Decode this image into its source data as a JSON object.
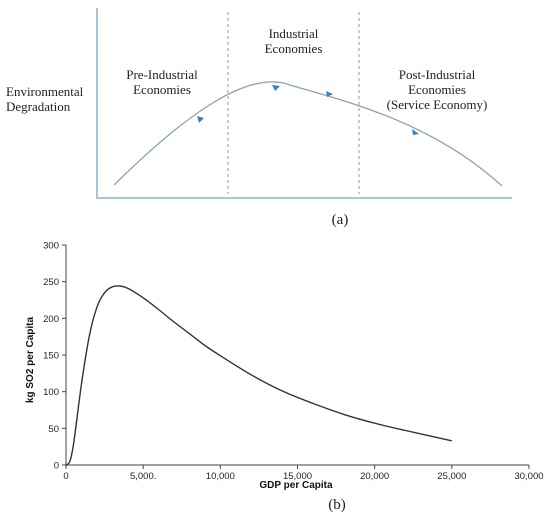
{
  "panel_a": {
    "caption": "(a)",
    "ylabel_line1": "Environmental",
    "ylabel_line2": "Degradation",
    "regions": [
      {
        "line1": "Pre-Industrial",
        "line2": "Economies",
        "line3": ""
      },
      {
        "line1": "Industrial",
        "line2": "Economies",
        "line3": ""
      },
      {
        "line1": "Post-Industrial",
        "line2": "Economies",
        "line3": "(Service Economy)"
      }
    ],
    "colors": {
      "curve": "#8aa3ad",
      "arrows": "#3b7fc4",
      "dividers": "#9a9a9a",
      "axis": "#a9c4d4"
    }
  },
  "panel_b": {
    "caption": "(b)",
    "chart_data": {
      "type": "line",
      "title": "",
      "xlabel": "GDP per Capita",
      "ylabel": "kg SO2 per Capita",
      "xlim": [
        0,
        30000
      ],
      "ylim": [
        0,
        300
      ],
      "xticks": [
        0,
        5000,
        10000,
        15000,
        20000,
        25000,
        30000
      ],
      "xtick_labels": [
        "0",
        "5,000.",
        "10,000",
        "15,000",
        "20,000",
        "25,000",
        "30,000"
      ],
      "yticks": [
        0,
        50,
        100,
        150,
        200,
        250,
        300
      ],
      "ytick_labels": [
        "0",
        "50",
        "100",
        "150",
        "200",
        "250",
        "300"
      ],
      "grid": false,
      "series": [
        {
          "x": [
            0,
            250,
            500,
            1000,
            1500,
            2000,
            2500,
            3000,
            3500,
            4000,
            5000,
            6000,
            7000,
            8000,
            9000,
            10000,
            12000,
            14000,
            16000,
            18000,
            20000,
            22000,
            25000
          ],
          "y": [
            0,
            5,
            30,
            110,
            175,
            215,
            235,
            243,
            244,
            241,
            228,
            212,
            195,
            179,
            163,
            149,
            123,
            101,
            84,
            69,
            57,
            47,
            33
          ]
        }
      ],
      "line_color": "#333333"
    }
  }
}
